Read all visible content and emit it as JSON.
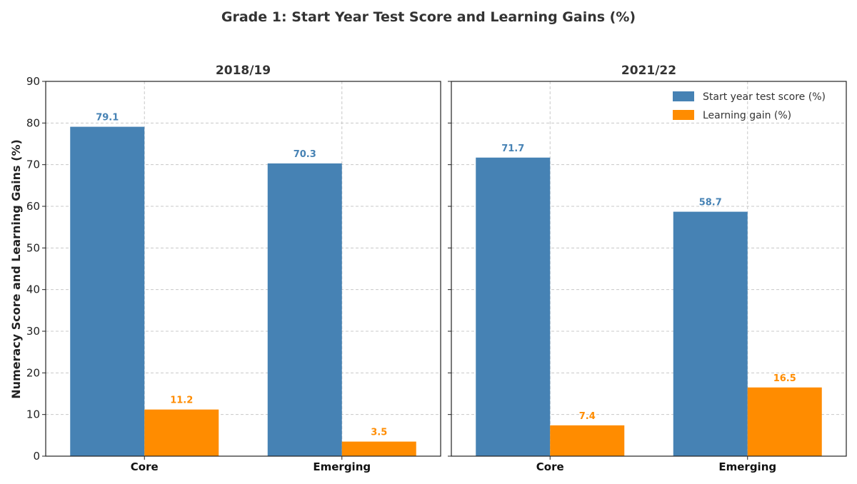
{
  "title": "Grade 1: Start Year Test Score and Learning Gains (%)",
  "ylabel": "Numeracy Score and Learning Gains (%)",
  "colors": {
    "start": "#4682b4",
    "gain": "#ff8c00"
  },
  "legend": {
    "placement": "top-right",
    "items": [
      {
        "label": "Start year test score (%)",
        "series": "start"
      },
      {
        "label": "Learning gain (%)",
        "series": "gain"
      }
    ]
  },
  "chart_data": [
    {
      "type": "bar",
      "title": "2018/19",
      "categories": [
        "Core",
        "Emerging"
      ],
      "series": [
        {
          "name": "Start year test score (%)",
          "key": "start",
          "values": [
            79.1,
            70.3
          ]
        },
        {
          "name": "Learning gain (%)",
          "key": "gain",
          "values": [
            11.2,
            3.5
          ]
        }
      ],
      "ylim": [
        0,
        90
      ],
      "yticks": [
        0,
        10,
        20,
        30,
        40,
        50,
        60,
        70,
        80,
        90
      ],
      "grid": true
    },
    {
      "type": "bar",
      "title": "2021/22",
      "categories": [
        "Core",
        "Emerging"
      ],
      "series": [
        {
          "name": "Start year test score (%)",
          "key": "start",
          "values": [
            71.7,
            58.7
          ]
        },
        {
          "name": "Learning gain (%)",
          "key": "gain",
          "values": [
            7.4,
            16.5
          ]
        }
      ],
      "ylim": [
        0,
        90
      ],
      "yticks": [
        0,
        10,
        20,
        30,
        40,
        50,
        60,
        70,
        80,
        90
      ],
      "grid": true
    }
  ]
}
